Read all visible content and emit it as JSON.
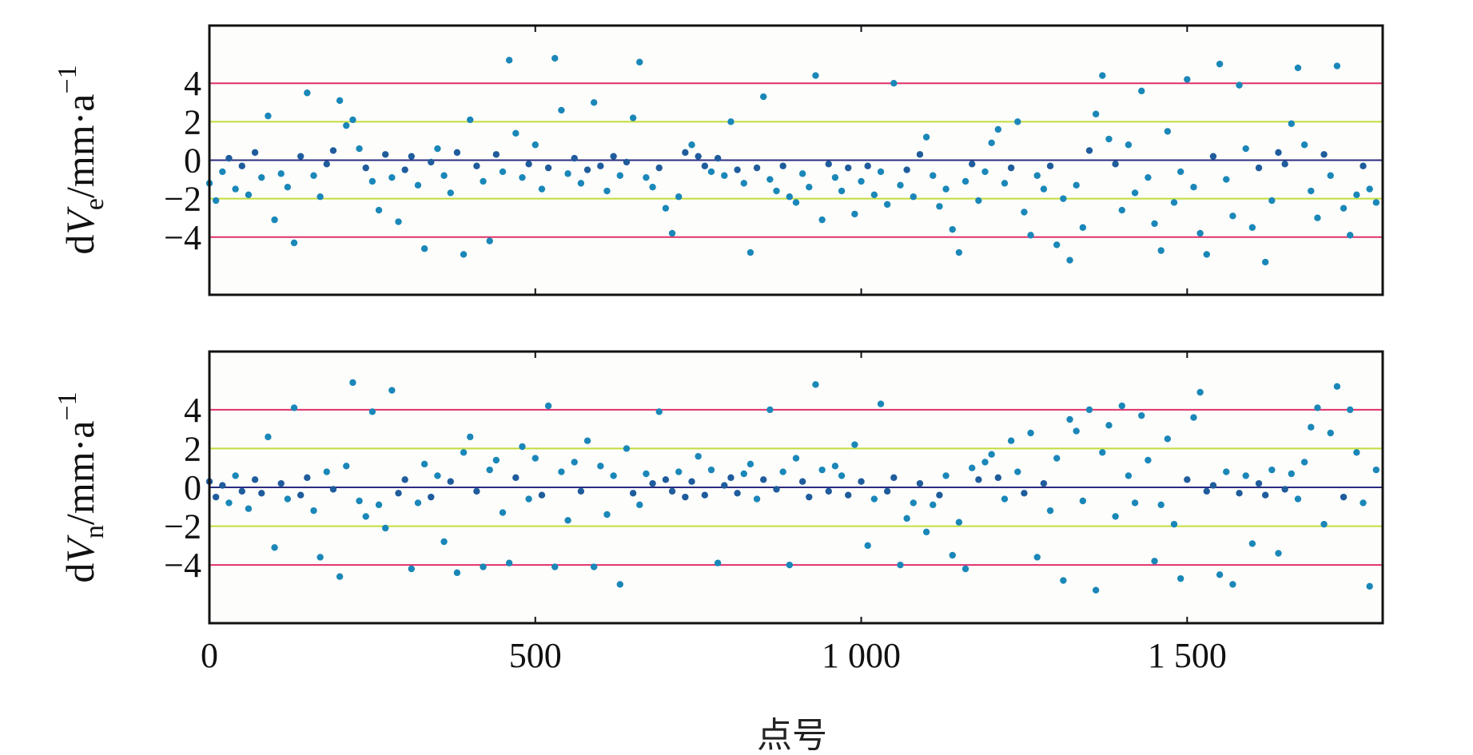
{
  "chart_data": [
    {
      "type": "scatter",
      "ylabel": {
        "prefix": "d",
        "var": "V",
        "sub": "e",
        "unit": "/mm·a",
        "sup": "−1"
      },
      "xlabel": "",
      "xlim": [
        0,
        1800
      ],
      "ylim": [
        -7,
        7
      ],
      "yticks": [
        4,
        2,
        0,
        -2,
        -4
      ],
      "ytick_labels": [
        "4",
        "2",
        "0",
        "−2",
        "−4"
      ],
      "xticks": [
        500,
        1000,
        1500
      ],
      "xtick_labels": [],
      "reference_lines": [
        {
          "y": 4,
          "color": "#e0306a"
        },
        {
          "y": 2,
          "color": "#c4dc3c"
        },
        {
          "y": 0,
          "color": "#2b2b80"
        },
        {
          "y": -2,
          "color": "#c4dc3c"
        },
        {
          "y": -4,
          "color": "#e0306a"
        }
      ],
      "point_color": "#1a87b8",
      "x_start": 0,
      "x_step": 10,
      "values": [
        -1.2,
        -2.1,
        -0.6,
        0.1,
        -1.5,
        -0.3,
        -1.8,
        0.4,
        -0.9,
        2.3,
        -3.1,
        -0.7,
        -1.4,
        -4.3,
        0.2,
        3.5,
        -0.8,
        -1.9,
        -0.2,
        0.5,
        3.1,
        1.8,
        2.1,
        0.6,
        -0.4,
        -1.1,
        -2.6,
        0.3,
        -0.9,
        -3.2,
        -0.5,
        0.2,
        -1.3,
        -4.6,
        -0.1,
        0.6,
        -0.8,
        -1.7,
        0.4,
        -4.9,
        2.1,
        -0.3,
        -1.1,
        -4.2,
        0.3,
        -0.6,
        5.2,
        1.4,
        -0.9,
        -0.2,
        0.8,
        -1.5,
        -0.4,
        5.3,
        2.6,
        -0.7,
        0.1,
        -1.2,
        -0.5,
        3.0,
        -0.3,
        -1.6,
        0.2,
        -0.8,
        -0.1,
        2.2,
        5.1,
        -0.9,
        -1.4,
        -0.4,
        -2.5,
        -3.8,
        -1.9,
        0.4,
        0.8,
        0.2,
        -0.3,
        -0.6,
        0.1,
        -0.8,
        2.0,
        -0.5,
        -1.2,
        -4.8,
        -0.4,
        3.3,
        -1.0,
        -1.6,
        -0.3,
        -1.9,
        -2.2,
        -0.7,
        -1.4,
        4.4,
        -3.1,
        -0.2,
        -0.9,
        -1.6,
        -0.4,
        -2.8,
        -1.1,
        -0.3,
        -1.8,
        -0.6,
        -2.3,
        4.0,
        -1.3,
        -0.5,
        -1.9,
        0.3,
        1.2,
        -0.8,
        -2.4,
        -1.5,
        -3.6,
        -4.8,
        -1.1,
        -0.2,
        -2.1,
        -0.6,
        0.9,
        1.6,
        -1.2,
        -0.4,
        2.0,
        -2.7,
        -3.9,
        -0.8,
        -1.5,
        -0.3,
        -4.4,
        -2.0,
        -5.2,
        -1.3,
        -3.5,
        0.5,
        2.4,
        4.4,
        1.1,
        -0.2,
        -2.6,
        0.8,
        -1.7,
        3.6,
        -0.9,
        -3.3,
        -4.7,
        1.5,
        -2.2,
        -0.6,
        4.2,
        -1.4,
        -3.8,
        -4.9,
        0.2,
        5.0,
        -1.0,
        -2.9,
        3.9,
        0.6,
        -3.5,
        -0.4,
        -5.3,
        -2.1,
        0.4,
        -0.2,
        1.9,
        4.8,
        0.8,
        -1.6,
        -3.0,
        0.3,
        -0.8,
        4.9,
        -2.5,
        -3.9,
        -1.8,
        -0.3,
        -1.5,
        -2.2
      ]
    },
    {
      "type": "scatter",
      "ylabel": {
        "prefix": "d",
        "var": "V",
        "sub": "n",
        "unit": "/mm·a",
        "sup": "−1"
      },
      "xlabel": "点号",
      "xlim": [
        0,
        1800
      ],
      "ylim": [
        -7,
        7
      ],
      "yticks": [
        4,
        2,
        0,
        -2,
        -4
      ],
      "ytick_labels": [
        "4",
        "2",
        "0",
        "−2",
        "−4"
      ],
      "xticks": [
        0,
        500,
        1000,
        1500
      ],
      "xtick_labels": [
        "0",
        "500",
        "1 000",
        "1 500"
      ],
      "reference_lines": [
        {
          "y": 4,
          "color": "#e0306a"
        },
        {
          "y": 2,
          "color": "#c4dc3c"
        },
        {
          "y": 0,
          "color": "#2b2b80"
        },
        {
          "y": -2,
          "color": "#c4dc3c"
        },
        {
          "y": -4,
          "color": "#e0306a"
        }
      ],
      "point_color": "#1a87b8",
      "x_start": 0,
      "x_step": 10,
      "values": [
        0.3,
        -0.5,
        0.1,
        -0.8,
        0.6,
        -0.2,
        -1.1,
        0.4,
        -0.3,
        2.6,
        -3.1,
        0.2,
        -0.6,
        4.1,
        -0.4,
        0.5,
        -1.2,
        -3.6,
        0.8,
        -0.1,
        -4.6,
        1.1,
        5.4,
        -0.7,
        -1.5,
        3.9,
        -0.9,
        -2.1,
        5.0,
        -0.3,
        0.4,
        -4.2,
        -0.8,
        1.2,
        -0.5,
        0.6,
        -2.8,
        0.3,
        -4.4,
        1.8,
        2.6,
        -0.2,
        -4.1,
        0.9,
        1.4,
        -1.3,
        -3.9,
        0.5,
        2.1,
        -0.6,
        1.5,
        -0.4,
        4.2,
        -4.1,
        0.8,
        -1.7,
        1.3,
        -0.2,
        2.4,
        -4.1,
        1.1,
        -1.4,
        0.6,
        -5.0,
        2.0,
        -0.3,
        -0.9,
        0.7,
        0.2,
        3.9,
        0.4,
        -0.2,
        0.8,
        -0.5,
        0.3,
        1.6,
        -0.4,
        0.9,
        -3.9,
        0.1,
        0.5,
        -0.3,
        0.7,
        1.2,
        -0.6,
        0.4,
        4.0,
        -0.1,
        0.8,
        -4.0,
        1.5,
        0.3,
        -0.5,
        5.3,
        0.9,
        -0.2,
        1.1,
        0.6,
        -0.4,
        2.2,
        0.3,
        -3.0,
        -0.6,
        4.3,
        -0.2,
        0.5,
        -4.0,
        -1.6,
        -0.8,
        0.2,
        -2.3,
        -0.9,
        -0.4,
        0.6,
        -3.5,
        -1.8,
        -4.2,
        1.0,
        0.4,
        1.3,
        1.7,
        0.5,
        -0.6,
        2.4,
        0.8,
        -0.3,
        2.8,
        -3.6,
        0.2,
        -1.2,
        1.5,
        -4.8,
        3.5,
        2.9,
        -0.7,
        4.0,
        -5.3,
        1.8,
        3.2,
        -1.5,
        4.2,
        0.6,
        -0.8,
        3.7,
        1.4,
        -3.8,
        -0.9,
        2.5,
        -1.9,
        -4.7,
        0.4,
        3.6,
        4.9,
        -0.2,
        0.1,
        -4.5,
        0.8,
        -5.0,
        -0.3,
        0.6,
        -2.9,
        0.2,
        -0.4,
        0.9,
        -3.4,
        -0.1,
        0.7,
        -0.6,
        1.3,
        3.1,
        4.1,
        -1.9,
        2.8,
        5.2,
        -0.5,
        4.0,
        1.8,
        -0.8,
        -5.1,
        0.9
      ]
    }
  ]
}
